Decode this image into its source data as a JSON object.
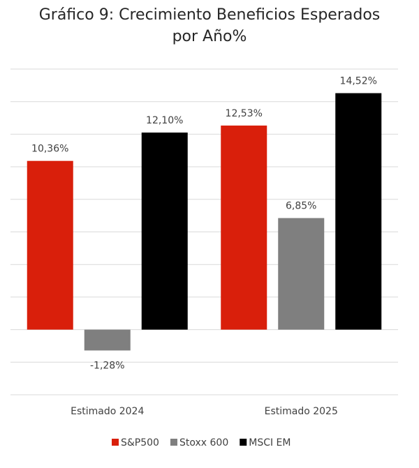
{
  "chart_data": {
    "type": "bar",
    "title": "Gráfico 9: Crecimiento Beneficios Esperados por Año%",
    "categories": [
      "Estimado 2024",
      "Estimado 2025"
    ],
    "series": [
      {
        "name": "S&P500",
        "color": "#d91f0b",
        "values": [
          10.36,
          12.53
        ],
        "value_labels": [
          "10,36%",
          "12,53%"
        ]
      },
      {
        "name": "Stoxx 600",
        "color": "#7f7f7f",
        "values": [
          -1.28,
          6.85
        ],
        "value_labels": [
          "-1,28%",
          "6,85%"
        ]
      },
      {
        "name": "MSCI EM",
        "color": "#000000",
        "values": [
          12.1,
          14.52
        ],
        "value_labels": [
          "12,10%",
          "14,52%"
        ]
      }
    ],
    "ylim": [
      -4,
      16
    ],
    "yticks": [
      -4,
      -2,
      0,
      2,
      4,
      6,
      8,
      10,
      12,
      14,
      16
    ],
    "grid": true,
    "legend": "bottom"
  }
}
